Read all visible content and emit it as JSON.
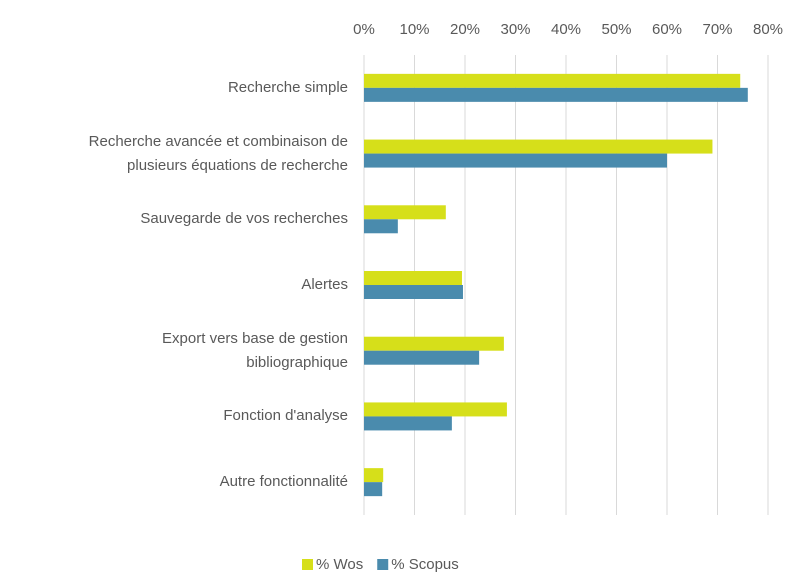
{
  "chart_data": {
    "type": "hbar",
    "categories": [
      "Recherche simple",
      "Recherche avancée et combinaison de\nplusieurs équations de recherche",
      "Sauvegarde de vos recherches",
      "Alertes",
      "Export vers base de gestion\nbibliographique",
      "Fonction d'analyse",
      "Autre fonctionnalité"
    ],
    "series": [
      {
        "name": "% Wos",
        "color": "#d6df1a",
        "values": [
          74.5,
          69,
          16.2,
          19.4,
          27.7,
          28.3,
          3.8
        ]
      },
      {
        "name": "% Scopus",
        "color": "#4a8bad",
        "values": [
          76,
          60,
          6.7,
          19.6,
          22.8,
          17.4,
          3.6
        ]
      }
    ],
    "xlim": [
      0,
      80
    ],
    "xticks": [
      {
        "value": 0,
        "label": "0%"
      },
      {
        "value": 10,
        "label": "10%"
      },
      {
        "value": 20,
        "label": "20%"
      },
      {
        "value": 30,
        "label": "30%"
      },
      {
        "value": 40,
        "label": "40%"
      },
      {
        "value": 50,
        "label": "50%"
      },
      {
        "value": 60,
        "label": "60%"
      },
      {
        "value": 70,
        "label": "70%"
      },
      {
        "value": 80,
        "label": "80%"
      }
    ],
    "grid": true,
    "legend": "bottom"
  }
}
